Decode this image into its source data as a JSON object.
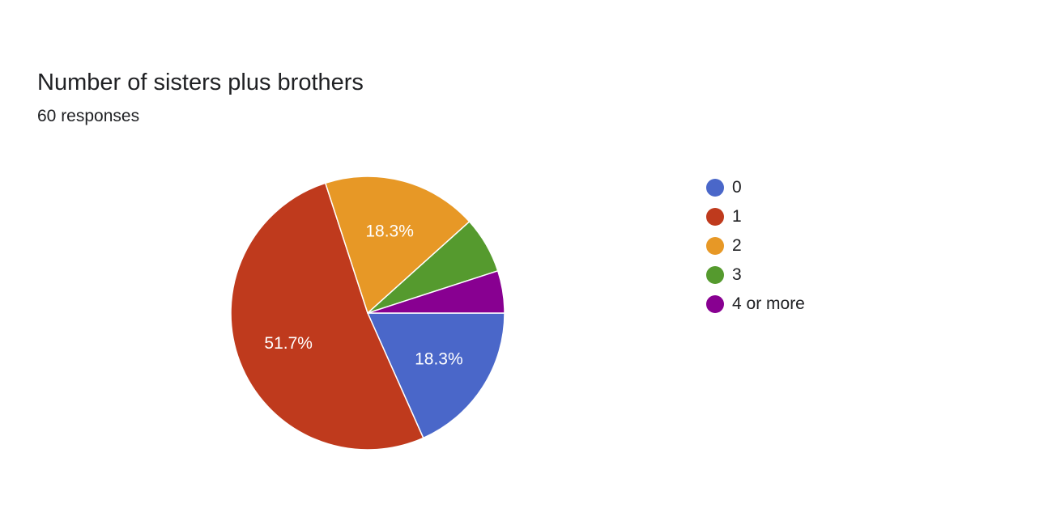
{
  "chart_data": {
    "type": "pie",
    "title": "Number of sisters plus brothers",
    "subtitle": "60 responses",
    "categories": [
      "0",
      "1",
      "2",
      "3",
      "4 or more"
    ],
    "values": [
      11,
      31,
      11,
      4,
      3
    ],
    "percent_labels": [
      "18.3%",
      "51.7%",
      "18.3%",
      "",
      ""
    ],
    "colors": [
      "#4a67c9",
      "#bf3a1d",
      "#e79826",
      "#559a2e",
      "#880091"
    ],
    "legend_position": "right",
    "start_angle_deg": 0,
    "direction": "clockwise"
  }
}
